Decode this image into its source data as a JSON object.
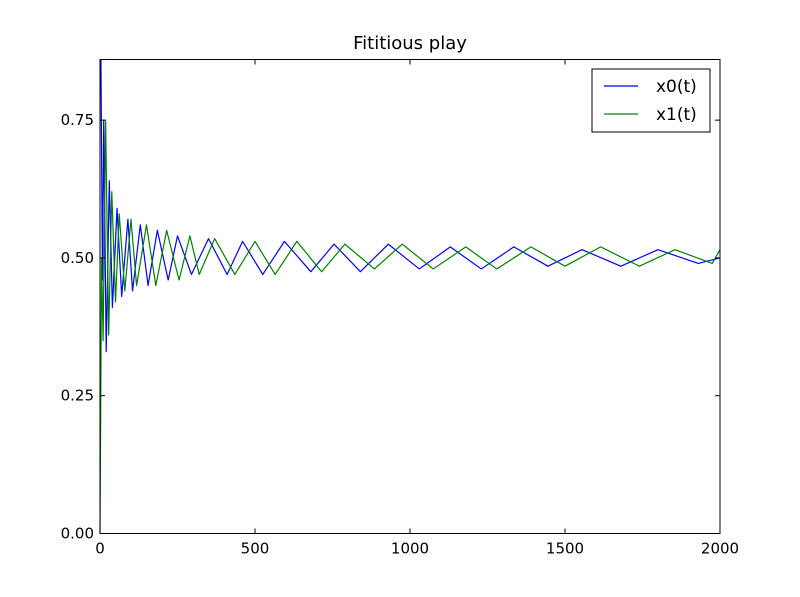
{
  "chart_data": {
    "type": "line",
    "title": "Fititious play",
    "xlabel": "",
    "ylabel": "",
    "xlim": [
      0,
      2000
    ],
    "ylim": [
      0.0,
      0.86
    ],
    "xticks": [
      "0",
      "500",
      "1000",
      "1500",
      "2000"
    ],
    "yticks": [
      "0.00",
      "0.25",
      "0.50",
      "0.75"
    ],
    "xtick_values": [
      0,
      500,
      1000,
      1500,
      2000
    ],
    "ytick_values": [
      0.0,
      0.25,
      0.5,
      0.75
    ],
    "grid": false,
    "legend": "top-right",
    "series": [
      {
        "name": "x0(t)",
        "color": "#0000ff",
        "x": [
          0,
          3,
          8,
          12,
          20,
          30,
          40,
          55,
          70,
          90,
          105,
          130,
          155,
          185,
          220,
          250,
          295,
          350,
          410,
          460,
          525,
          595,
          680,
          755,
          840,
          930,
          1030,
          1130,
          1230,
          1335,
          1445,
          1555,
          1680,
          1800,
          1930,
          2000
        ],
        "y": [
          0.85,
          0.86,
          0.46,
          0.75,
          0.33,
          0.64,
          0.41,
          0.59,
          0.43,
          0.57,
          0.44,
          0.56,
          0.45,
          0.55,
          0.46,
          0.54,
          0.47,
          0.535,
          0.47,
          0.53,
          0.47,
          0.53,
          0.475,
          0.525,
          0.475,
          0.525,
          0.48,
          0.52,
          0.48,
          0.52,
          0.485,
          0.515,
          0.485,
          0.515,
          0.49,
          0.5
        ]
      },
      {
        "name": "x1(t)",
        "color": "#008000",
        "x": [
          0,
          5,
          10,
          18,
          28,
          38,
          50,
          62,
          80,
          100,
          118,
          150,
          180,
          215,
          255,
          290,
          320,
          370,
          435,
          500,
          565,
          635,
          715,
          790,
          885,
          975,
          1075,
          1180,
          1280,
          1390,
          1500,
          1615,
          1740,
          1855,
          1975,
          2000
        ],
        "y": [
          0.0,
          0.5,
          0.35,
          0.75,
          0.36,
          0.62,
          0.42,
          0.58,
          0.44,
          0.57,
          0.45,
          0.56,
          0.45,
          0.55,
          0.46,
          0.54,
          0.47,
          0.535,
          0.47,
          0.53,
          0.47,
          0.53,
          0.475,
          0.525,
          0.48,
          0.525,
          0.48,
          0.52,
          0.48,
          0.52,
          0.485,
          0.52,
          0.485,
          0.515,
          0.49,
          0.515
        ]
      }
    ]
  }
}
